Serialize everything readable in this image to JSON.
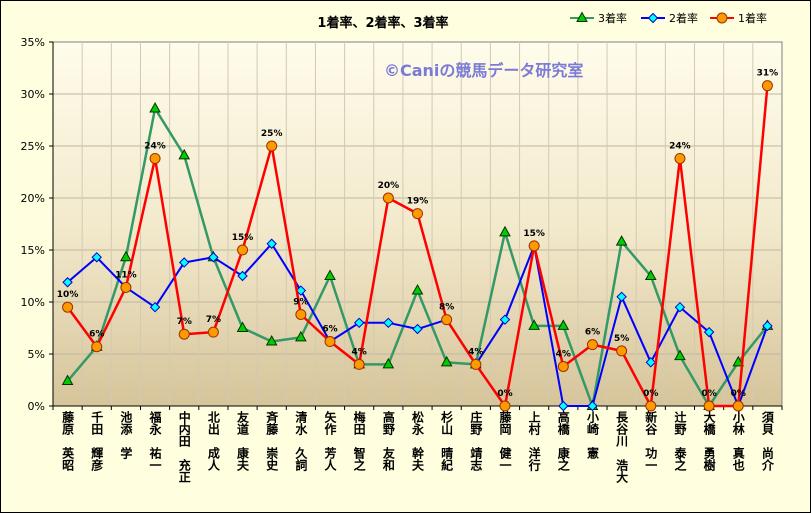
{
  "chart_data": {
    "type": "line",
    "title": "1着率、2着率、3着率",
    "categories": [
      "藤原　英昭",
      "千田　輝彦",
      "池添　学",
      "福永　祐一",
      "中内田　充正",
      "北出　成人",
      "友道　康夫",
      "斉藤　崇史",
      "清水　久詞",
      "矢作　芳人",
      "梅田　智之",
      "高野　友和",
      "松永　幹夫",
      "杉山　晴紀",
      "庄野　靖志",
      "藤岡　健一",
      "上村　洋行",
      "高橋　康之",
      "小崎　憲",
      "長谷川　浩大",
      "新谷　功一",
      "辻野　泰之",
      "大橋　勇樹",
      "小林　真也",
      "須貝　尚介"
    ],
    "ylim": [
      0,
      35
    ],
    "y_ticks": [
      {
        "value": 0,
        "label": "0%"
      },
      {
        "value": 5,
        "label": "5%"
      },
      {
        "value": 10,
        "label": "10%"
      },
      {
        "value": 15,
        "label": "15%"
      },
      {
        "value": 20,
        "label": "20%"
      },
      {
        "value": 25,
        "label": "25%"
      },
      {
        "value": 30,
        "label": "30%"
      },
      {
        "value": 35,
        "label": "35%"
      }
    ],
    "series": [
      {
        "name": "3着率",
        "marker": "triangle",
        "line_color": "#339966",
        "marker_fill": "#00CC00",
        "marker_stroke": "#003300",
        "values": [
          2.4,
          5.7,
          14.3,
          28.6,
          24.1,
          14.3,
          7.5,
          6.2,
          6.6,
          12.5,
          4.0,
          4.0,
          11.1,
          4.2,
          4.0,
          16.7,
          7.7,
          7.7,
          0,
          15.8,
          12.5,
          4.8,
          0,
          4.2,
          7.7
        ]
      },
      {
        "name": "2着率",
        "marker": "diamond",
        "line_color": "#0000FF",
        "marker_fill": "#00FFFF",
        "marker_stroke": "#0000CC",
        "values": [
          11.9,
          14.3,
          11.4,
          9.5,
          13.8,
          14.3,
          12.5,
          15.6,
          11.1,
          6.2,
          8.0,
          8.0,
          7.4,
          8.3,
          4.0,
          8.3,
          15.4,
          0,
          0,
          10.5,
          4.2,
          9.5,
          7.1,
          0,
          7.7
        ]
      },
      {
        "name": "1着率",
        "marker": "circle",
        "line_color": "#FF0000",
        "marker_fill": "#FF9900",
        "marker_stroke": "#993300",
        "values": [
          9.5,
          5.7,
          11.4,
          23.8,
          6.9,
          7.1,
          15.0,
          25.0,
          8.8,
          6.2,
          4.0,
          20.0,
          18.5,
          8.3,
          4.0,
          0,
          15.4,
          3.8,
          5.9,
          5.3,
          0,
          23.8,
          0,
          0,
          30.8
        ],
        "data_labels": [
          "10%",
          "6%",
          "11%",
          "24%",
          "7%",
          "7%",
          "15%",
          "25%",
          "9%",
          "6%",
          "4%",
          "20%",
          "19%",
          "8%",
          "4%",
          "0%",
          "15%",
          "4%",
          "6%",
          "5%",
          "0%",
          "24%",
          "0%",
          "0%",
          "31%"
        ]
      }
    ],
    "grid": true,
    "legend": "top-right"
  },
  "watermark": "©Caniの競馬データ研究室"
}
